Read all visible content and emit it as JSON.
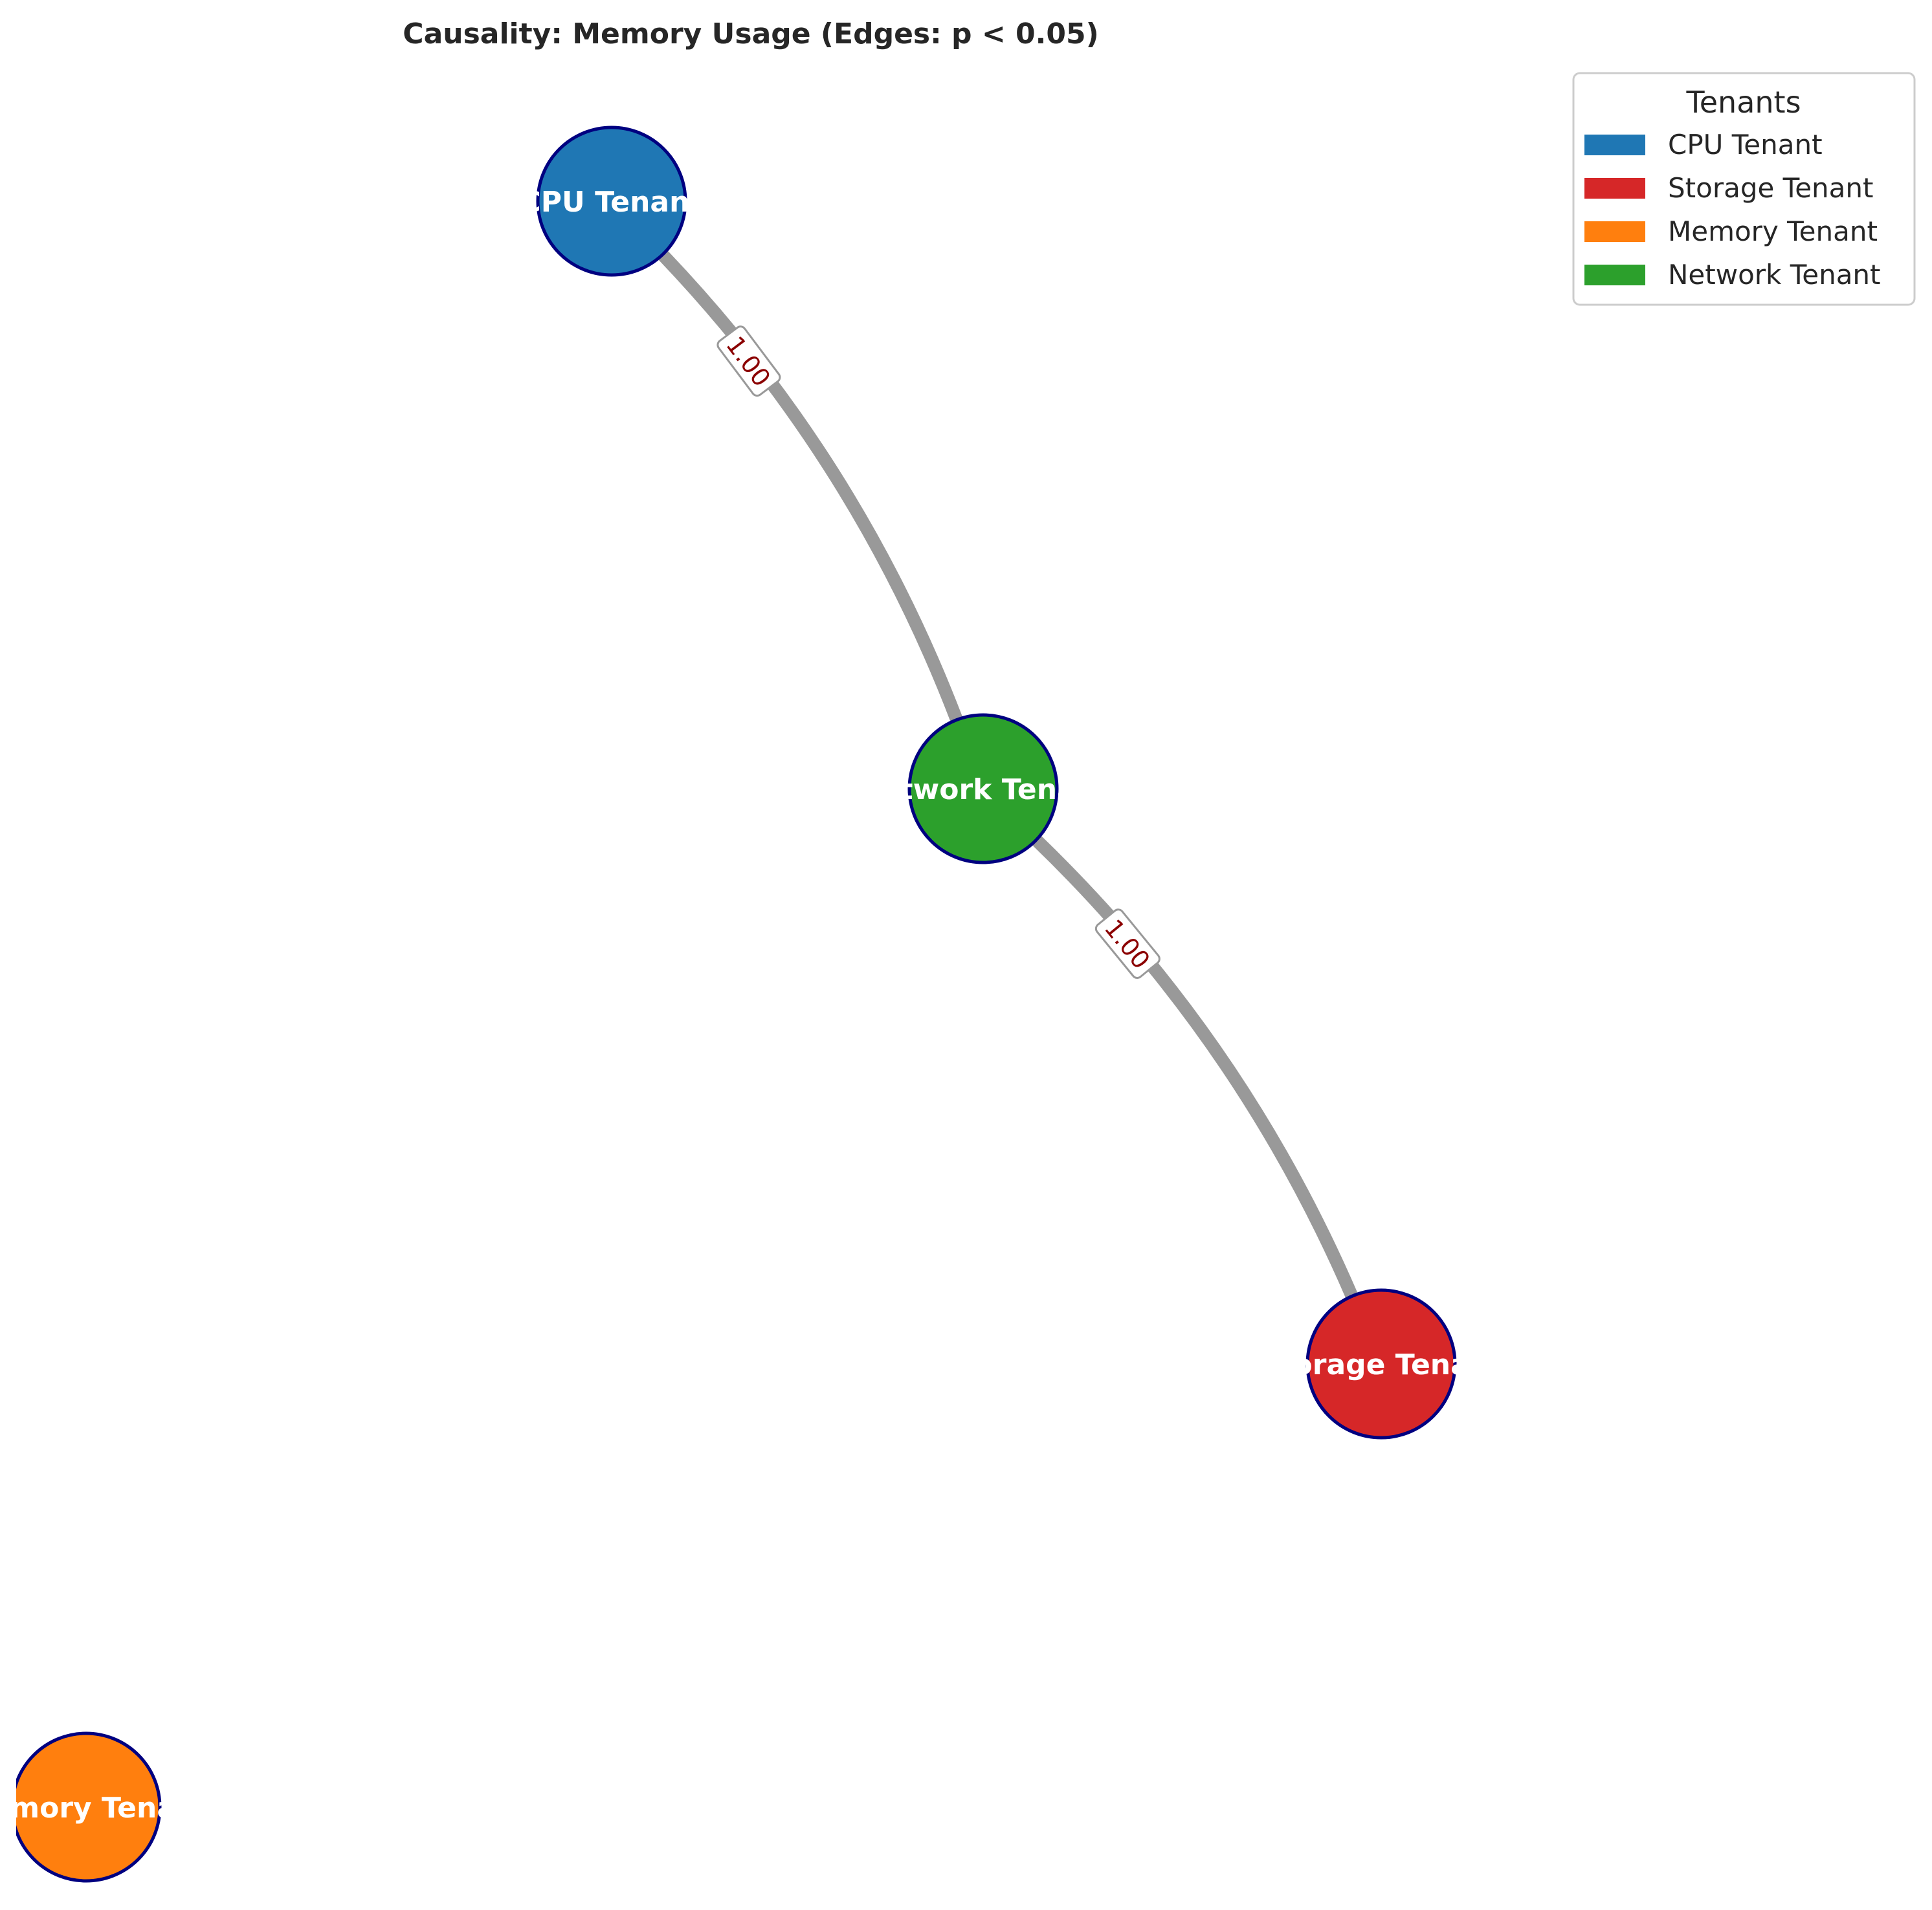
{
  "title": "Causality: Memory Usage (Edges: p < 0.05)",
  "legend": {
    "title": "Tenants",
    "items": [
      {
        "label": "CPU Tenant",
        "color": "#1f77b4"
      },
      {
        "label": "Storage Tenant",
        "color": "#d62728"
      },
      {
        "label": "Memory Tenant",
        "color": "#ff7f0e"
      },
      {
        "label": "Network Tenant",
        "color": "#2ca02c"
      }
    ]
  },
  "nodes": [
    {
      "id": "cpu",
      "label": "CPU Tenant",
      "color": "#1f77b4"
    },
    {
      "id": "network",
      "label": "Network Tenant",
      "color": "#2ca02c"
    },
    {
      "id": "storage",
      "label": "Storage Tenant",
      "color": "#d62728"
    },
    {
      "id": "memory",
      "label": "Memory Tenant",
      "color": "#ff7f0e"
    }
  ],
  "edges": [
    {
      "source": "cpu",
      "target": "network",
      "label": "1.00"
    },
    {
      "source": "network",
      "target": "storage",
      "label": "1.00"
    }
  ],
  "style": {
    "node_border_color": "#000080",
    "edge_color": "#999999",
    "edge_label_color": "#8b0000"
  }
}
